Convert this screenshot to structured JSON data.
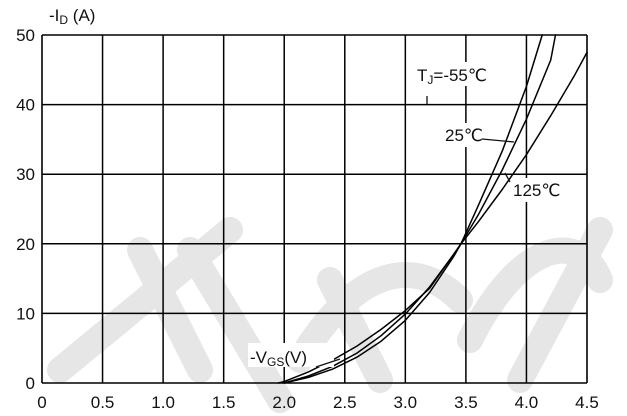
{
  "chart_data": {
    "type": "line",
    "ylabel_prefix": "-I",
    "ylabel_sub": "D",
    "ylabel_suffix": " (A)",
    "xlabel_prefix": "-V",
    "xlabel_sub": "GS",
    "xlabel_suffix": "(V)",
    "xlim": [
      0,
      4.5
    ],
    "ylim": [
      0,
      50
    ],
    "grid": true,
    "x_ticks": [
      "0",
      "0.5",
      "1.0",
      "1.5",
      "2.0",
      "2.5",
      "3.0",
      "3.5",
      "4.0",
      "4.5"
    ],
    "y_ticks": [
      "0",
      "10",
      "20",
      "30",
      "40",
      "50"
    ],
    "series": [
      {
        "name": "TJ=-55℃",
        "label_prefix": "T",
        "label_sub": "J",
        "label_suffix": "=-55℃",
        "x": [
          2.0,
          2.2,
          2.4,
          2.6,
          2.8,
          3.0,
          3.2,
          3.4,
          3.46,
          3.6,
          3.8,
          4.0,
          4.13
        ],
        "y": [
          0,
          0.8,
          2.0,
          3.7,
          6.0,
          9.0,
          13.0,
          18.2,
          20,
          25.4,
          33.3,
          42.6,
          50
        ]
      },
      {
        "name": "25℃",
        "label_prefix": "25℃",
        "x": [
          2.0,
          2.2,
          2.4,
          2.6,
          2.8,
          3.0,
          3.2,
          3.4,
          3.46,
          3.6,
          3.8,
          4.0,
          4.2,
          4.24
        ],
        "y": [
          0,
          1.0,
          2.4,
          4.3,
          6.8,
          9.9,
          13.8,
          18.5,
          20,
          24.1,
          30.6,
          37.9,
          46.4,
          50
        ]
      },
      {
        "name": "125℃",
        "label_prefix": "125℃",
        "x": [
          1.95,
          2.0,
          2.2,
          2.4,
          2.6,
          2.8,
          3.0,
          3.2,
          3.4,
          3.46,
          3.6,
          3.8,
          4.0,
          4.2,
          4.4,
          4.5
        ],
        "y": [
          0,
          0.2,
          1.6,
          3.3,
          5.3,
          7.7,
          10.4,
          13.6,
          18.5,
          20,
          23.1,
          27.8,
          32.8,
          38.4,
          44.3,
          47.5
        ]
      }
    ]
  }
}
